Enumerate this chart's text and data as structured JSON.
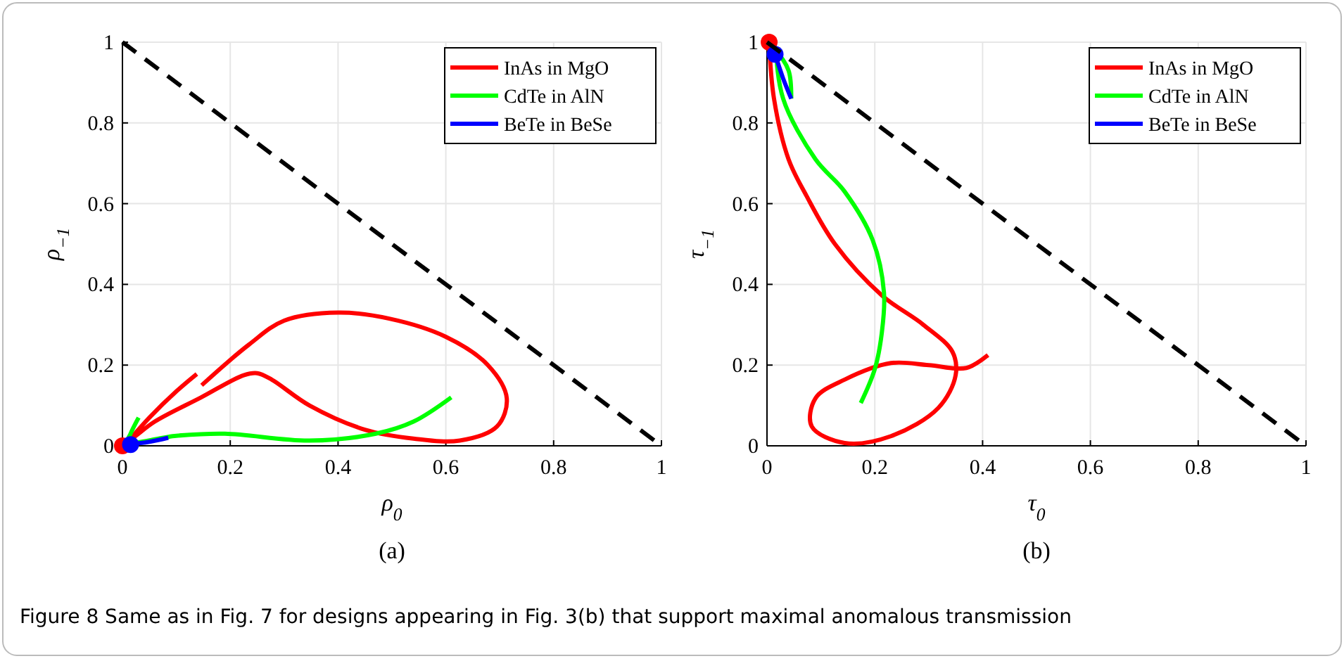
{
  "chart_data": [
    {
      "type": "line",
      "xlabel": "ρ$_{0}$",
      "ylabel": "ρ$_{−1}$",
      "annotations": [
        "(a)",
        "Figure 8  Same as in Fig. 7 for designs appearing in Fig. 3(b) that support maximal anomalous transmission"
      ],
      "xlim": [
        0,
        1
      ],
      "ylim": [
        0,
        1
      ],
      "xticks": [
        0,
        0.2,
        0.4,
        0.6,
        0.8,
        1
      ],
      "yticks": [
        0,
        0.2,
        0.4,
        0.6,
        0.8,
        1
      ],
      "grid": true,
      "legend": "top right",
      "series": [
        {
          "name": "InAs in MgO",
          "color": "#ff0000",
          "x": [
            0.01,
            0.05,
            0.1,
            0.138,
            null,
            0.147,
            0.234,
            0.3,
            0.4,
            0.495,
            0.6,
            0.678,
            0.713,
            0.695,
            0.626,
            0.54,
            0.45,
            0.347,
            0.277,
            0.25,
            0.225,
            0.146,
            0.06,
            0.025,
            0.01
          ],
          "values": [
            0.01,
            0.07,
            0.135,
            0.178,
            null,
            0.15,
            0.25,
            0.31,
            0.33,
            0.315,
            0.27,
            0.2,
            0.118,
            0.048,
            0.013,
            0.018,
            0.04,
            0.1,
            0.164,
            0.18,
            0.175,
            0.12,
            0.06,
            0.025,
            0.01
          ]
        },
        {
          "name": "CdTe in AlN",
          "color": "#00ff00",
          "x": [
            0.03,
            0.015,
            0.01,
            0.1,
            0.19,
            0.347,
            0.47,
            0.54,
            0.61
          ],
          "values": [
            0.07,
            0.03,
            0.01,
            0.025,
            0.03,
            0.013,
            0.03,
            0.06,
            0.12
          ]
        },
        {
          "name": "BeTe in BeSe",
          "color": "#0000ff",
          "x": [
            0.01,
            0.05,
            0.085
          ],
          "values": [
            0.003,
            0.01,
            0.02
          ]
        },
        {
          "type": "scatter",
          "marker": "circle",
          "color": "#ff0000",
          "x": [
            0.0
          ],
          "values": [
            0.0
          ]
        },
        {
          "type": "scatter",
          "marker": "circle",
          "color": "#0000ff",
          "x": [
            0.015
          ],
          "values": [
            0.003
          ]
        },
        {
          "color": "#000000",
          "line_style": "dashed",
          "x": [
            0,
            1
          ],
          "values": [
            1,
            0
          ]
        }
      ]
    },
    {
      "type": "line",
      "xlabel": "τ$_{0}$",
      "ylabel": "τ$_{−1}$",
      "annotations": [
        "(b)"
      ],
      "xlim": [
        0,
        1
      ],
      "ylim": [
        0,
        1
      ],
      "xticks": [
        0,
        0.2,
        0.4,
        0.6,
        0.8,
        1
      ],
      "yticks": [
        0,
        0.2,
        0.4,
        0.6,
        0.8,
        1
      ],
      "grid": true,
      "legend": "top right",
      "series": [
        {
          "name": "InAs in MgO",
          "color": "#ff0000",
          "x": [
            0.004,
            0.013,
            0.04,
            0.073,
            0.126,
            0.213,
            0.29,
            0.344,
            0.35,
            0.318,
            0.23,
            0.144,
            0.083,
            0.09,
            0.144,
            0.23,
            0.3,
            0.37,
            0.41
          ],
          "values": [
            1.0,
            0.86,
            0.71,
            0.62,
            0.5,
            0.373,
            0.3,
            0.233,
            0.175,
            0.094,
            0.024,
            0.007,
            0.048,
            0.118,
            0.164,
            0.205,
            0.2,
            0.193,
            0.225
          ]
        },
        {
          "name": "CdTe in AlN",
          "color": "#00ff00",
          "x": [
            0.045,
            0.04,
            0.02,
            0.03,
            0.09,
            0.144,
            0.196,
            0.217,
            0.213,
            0.2,
            0.174
          ],
          "values": [
            0.86,
            0.93,
            0.97,
            0.86,
            0.71,
            0.63,
            0.51,
            0.38,
            0.28,
            0.19,
            0.106
          ]
        },
        {
          "name": "BeTe in BeSe",
          "color": "#0000ff",
          "x": [
            0.015,
            0.03,
            0.045
          ],
          "values": [
            0.97,
            0.91,
            0.86
          ]
        },
        {
          "type": "scatter",
          "marker": "circle",
          "color": "#ff0000",
          "x": [
            0.004
          ],
          "values": [
            1.0
          ]
        },
        {
          "type": "scatter",
          "marker": "circle",
          "color": "#0000ff",
          "x": [
            0.015
          ],
          "values": [
            0.97
          ]
        },
        {
          "color": "#000000",
          "line_style": "dashed",
          "x": [
            0,
            1
          ],
          "values": [
            1,
            0
          ]
        }
      ]
    }
  ]
}
